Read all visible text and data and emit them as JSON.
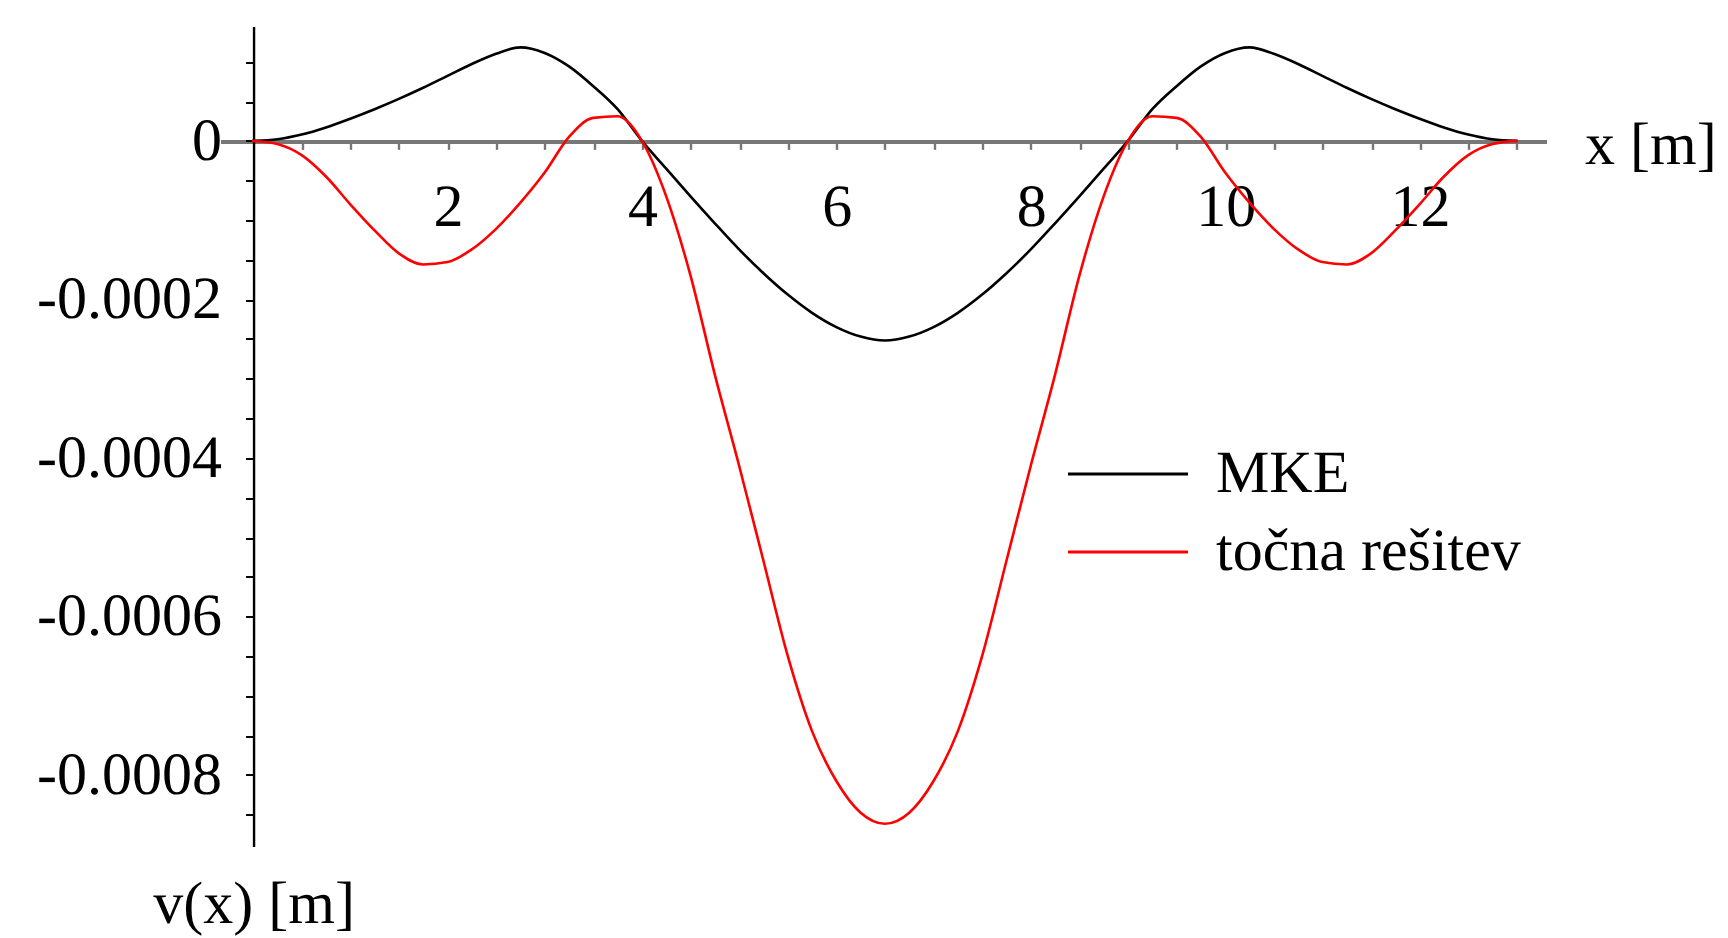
{
  "chart_data": {
    "type": "line",
    "xlabel": "x [m]",
    "ylabel": "v(x) [m]",
    "x": [
      0,
      0.25,
      0.5,
      0.75,
      1,
      1.25,
      1.5,
      1.75,
      2,
      2.25,
      2.5,
      2.75,
      3,
      3.25,
      3.5,
      3.75,
      4,
      4.25,
      4.5,
      4.75,
      5,
      5.25,
      5.5,
      5.75,
      6,
      6.25,
      6.5,
      6.75,
      7,
      7.25,
      7.5,
      7.75,
      8,
      8.25,
      8.5,
      8.75,
      9,
      9.25,
      9.5,
      9.75,
      10,
      10.25,
      10.5,
      10.75,
      11,
      11.25,
      11.5,
      11.75,
      12,
      12.25,
      12.5,
      12.75,
      13
    ],
    "series": [
      {
        "name": "MKE",
        "color": "#000000",
        "values": [
          0,
          2e-06,
          8e-06,
          1.7e-05,
          2.8e-05,
          4e-05,
          5.3e-05,
          6.7e-05,
          8.2e-05,
          9.7e-05,
          0.00011,
          0.000118,
          0.000111,
          9.4e-05,
          6.9e-05,
          4e-05,
          0,
          -3.5e-05,
          -7e-05,
          -0.000104,
          -0.000137,
          -0.000167,
          -0.000194,
          -0.000217,
          -0.000235,
          -0.000247,
          -0.000252,
          -0.000247,
          -0.000235,
          -0.000217,
          -0.000194,
          -0.000167,
          -0.000137,
          -0.000104,
          -7e-05,
          -3.5e-05,
          0,
          4e-05,
          6.9e-05,
          9.4e-05,
          0.000111,
          0.000118,
          0.00011,
          9.7e-05,
          8.2e-05,
          6.7e-05,
          5.3e-05,
          4e-05,
          2.8e-05,
          1.7e-05,
          8e-06,
          2e-06,
          0
        ]
      },
      {
        "name": "točna rešitev",
        "color": "#ff0000",
        "values": [
          0,
          -4e-06,
          -1.8e-05,
          -4.5e-05,
          -8e-05,
          -0.000113,
          -0.000142,
          -0.000156,
          -0.000153,
          -0.000137,
          -0.000111,
          -7.8e-05,
          -4e-05,
          5e-06,
          2.9e-05,
          3.1e-05,
          0,
          -7e-05,
          -0.00017,
          -0.000295,
          -0.00041,
          -0.00053,
          -0.00065,
          -0.000745,
          -0.000808,
          -0.000848,
          -0.000862,
          -0.000848,
          -0.000808,
          -0.000745,
          -0.00065,
          -0.00053,
          -0.00041,
          -0.000295,
          -0.00017,
          -7e-05,
          0,
          3.1e-05,
          2.9e-05,
          5e-06,
          -4e-05,
          -7.8e-05,
          -0.000111,
          -0.000137,
          -0.000153,
          -0.000156,
          -0.000142,
          -0.000113,
          -8e-05,
          -4.5e-05,
          -1.8e-05,
          -4e-06,
          0
        ]
      }
    ],
    "xlim": [
      -0.34,
      13.3
    ],
    "ylim": [
      -0.00089,
      0.000145
    ],
    "xticks": [
      {
        "value": 0.5,
        "label": null
      },
      {
        "value": 1,
        "label": null
      },
      {
        "value": 1.5,
        "label": null
      },
      2,
      {
        "value": 2.5,
        "label": null
      },
      {
        "value": 3,
        "label": null
      },
      {
        "value": 3.5,
        "label": null
      },
      4,
      {
        "value": 4.5,
        "label": null
      },
      {
        "value": 5,
        "label": null
      },
      {
        "value": 5.5,
        "label": null
      },
      6,
      {
        "value": 6.5,
        "label": null
      },
      {
        "value": 7,
        "label": null
      },
      {
        "value": 7.5,
        "label": null
      },
      8,
      {
        "value": 8.5,
        "label": null
      },
      {
        "value": 9,
        "label": null
      },
      {
        "value": 9.5,
        "label": null
      },
      10,
      {
        "value": 10.5,
        "label": null
      },
      {
        "value": 11,
        "label": null
      },
      {
        "value": 11.5,
        "label": null
      },
      12,
      {
        "value": 12.5,
        "label": null
      },
      {
        "value": 13,
        "label": null
      }
    ],
    "yticks": [
      {
        "value": 0.0001,
        "label": null
      },
      {
        "value": 5e-05,
        "label": null
      },
      0,
      {
        "value": -5e-05,
        "label": null
      },
      {
        "value": -0.0001,
        "label": null
      },
      {
        "value": -0.00015,
        "label": null
      },
      -0.0002,
      {
        "value": -0.00025,
        "label": null
      },
      {
        "value": -0.0003,
        "label": null
      },
      {
        "value": -0.00035,
        "label": null
      },
      -0.0004,
      {
        "value": -0.00045,
        "label": null
      },
      {
        "value": -0.0005,
        "label": null
      },
      {
        "value": -0.00055,
        "label": null
      },
      -0.0006,
      {
        "value": -0.00065,
        "label": null
      },
      {
        "value": -0.0007,
        "label": null
      },
      {
        "value": -0.00075,
        "label": null
      },
      -0.0008,
      {
        "value": -0.00085,
        "label": null
      }
    ],
    "legend": "right"
  }
}
